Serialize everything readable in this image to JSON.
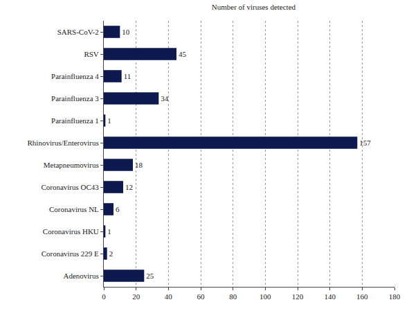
{
  "chart_data": {
    "type": "bar",
    "orientation": "horizontal",
    "title": "Number of viruses detected",
    "categories": [
      "SARS-CoV-2",
      "RSV",
      "Parainfluenza 4",
      "Parainfluenza 3",
      "Parainfluenza 1",
      "Rhinovirus/Enterovirus",
      "Metapneumovirus",
      "Coronavirus OC43",
      "Coronavirus NL",
      "Coronavirus HKU",
      "Coronavirus 229 E",
      "Adenovirus"
    ],
    "values": [
      10,
      45,
      11,
      34,
      1,
      157,
      18,
      12,
      6,
      1,
      2,
      25
    ],
    "color": "#0d1a4f",
    "xlim": [
      0,
      180
    ],
    "xticks": [
      0,
      20,
      40,
      60,
      80,
      100,
      120,
      140,
      160,
      180
    ],
    "grid": true,
    "data_labels": true
  }
}
